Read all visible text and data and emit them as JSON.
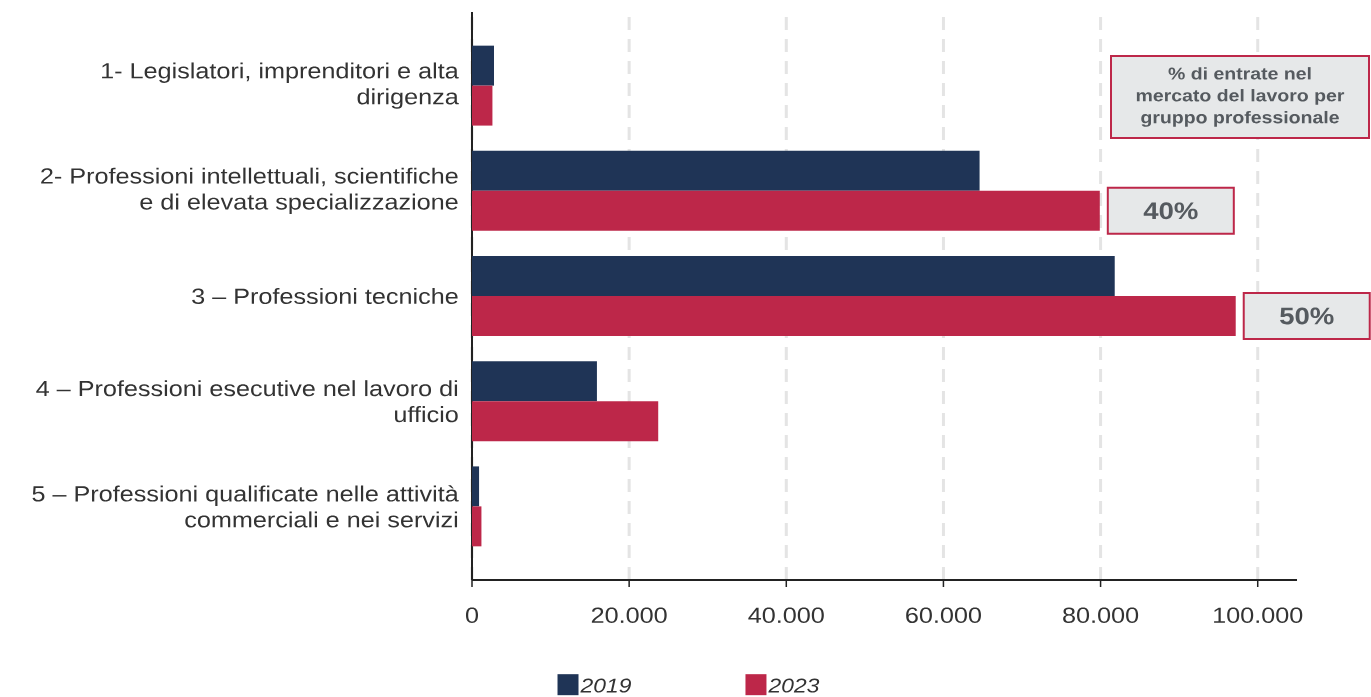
{
  "chart_data": {
    "type": "bar",
    "orientation": "horizontal",
    "categories": [
      "1- Legislatori, imprenditori e alta dirigenza",
      "2- Professioni intellettuali, scientifiche e di elevata specializzazione",
      "3 – Professioni tecniche",
      "4 – Professioni esecutive nel lavoro di ufficio",
      "5 – Professioni qualificate nelle attività commerciali e nei servizi"
    ],
    "series": [
      {
        "name": "2019",
        "color": "#1f3456",
        "values": [
          2800,
          64600,
          81800,
          15900,
          900
        ]
      },
      {
        "name": "2023",
        "color": "#bd2749",
        "values": [
          2600,
          79900,
          97200,
          23700,
          1200
        ]
      }
    ],
    "xlim": [
      0,
      105000
    ],
    "xticks": [
      0,
      {
        "value": 20000,
        "label": "20.000"
      },
      {
        "value": 40000,
        "label": "40.000"
      },
      {
        "value": 60000,
        "label": "60.000"
      },
      {
        "value": 80000,
        "label": "80.000"
      },
      {
        "value": 100000,
        "label": "100.000"
      }
    ],
    "grid": "x",
    "legend": "bottom",
    "annotations": [
      "% di entrate nel mercato del lavoro per gruppo professionale",
      {
        "text": "40%",
        "x": 79900,
        "y": "2- Professioni intellettuali, scientifiche e di elevata specializzazione"
      },
      {
        "text": "50%",
        "x": 97200,
        "y": "3 – Professioni tecniche"
      }
    ]
  }
}
